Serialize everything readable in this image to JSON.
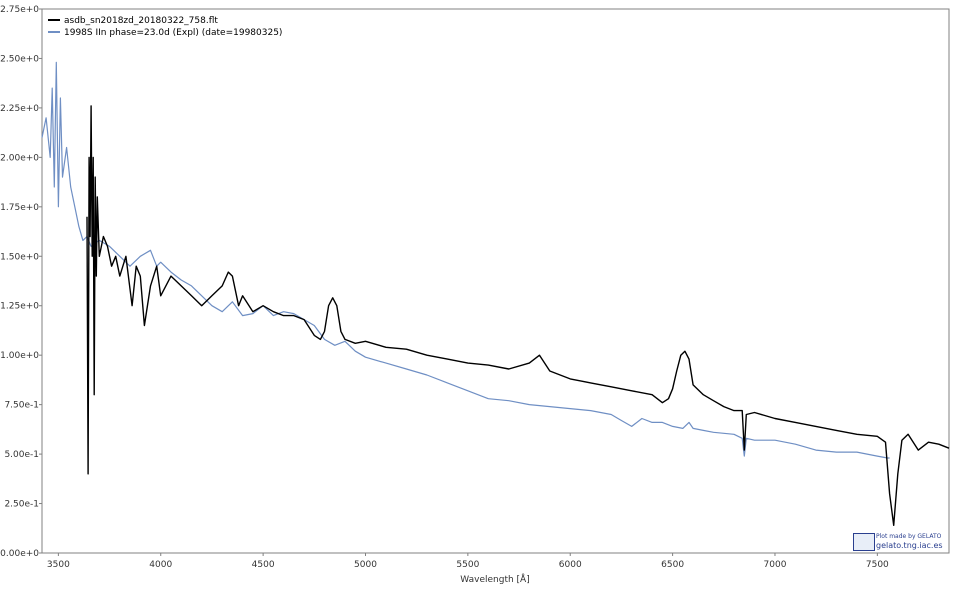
{
  "chart_data": {
    "type": "line",
    "title": "",
    "xlabel": "Wavelength [Å]",
    "ylabel": "",
    "xlim": [
      3420,
      7850
    ],
    "ylim": [
      0,
      2.75
    ],
    "xticks": [
      3500,
      4000,
      4500,
      5000,
      5500,
      6000,
      6500,
      7000,
      7500
    ],
    "yticks": [
      0,
      0.25,
      0.5,
      0.75,
      1.0,
      1.25,
      1.5,
      1.75,
      2.0,
      2.25,
      2.5,
      2.75
    ],
    "ytick_labels": [
      "0.00e+0",
      "2.50e-1",
      "5.00e-1",
      "7.50e-1",
      "1.00e+0",
      "1.25e+0",
      "1.50e+0",
      "1.75e+0",
      "2.00e+0",
      "2.25e+0",
      "2.50e+0",
      "2.75e+0"
    ],
    "grid": false,
    "legend_position": "top-left",
    "series": [
      {
        "name": "asdb_sn2018zd_20180322_758.flt",
        "color": "#000000",
        "x": [
          3640,
          3645,
          3650,
          3655,
          3660,
          3665,
          3670,
          3675,
          3680,
          3685,
          3690,
          3700,
          3720,
          3740,
          3760,
          3780,
          3800,
          3830,
          3860,
          3880,
          3900,
          3920,
          3950,
          3980,
          4000,
          4050,
          4100,
          4150,
          4200,
          4250,
          4300,
          4330,
          4350,
          4380,
          4400,
          4450,
          4500,
          4550,
          4600,
          4650,
          4700,
          4750,
          4780,
          4800,
          4820,
          4840,
          4860,
          4880,
          4900,
          4950,
          5000,
          5100,
          5200,
          5300,
          5400,
          5500,
          5600,
          5700,
          5800,
          5850,
          5900,
          6000,
          6100,
          6200,
          6300,
          6400,
          6450,
          6480,
          6500,
          6520,
          6540,
          6560,
          6580,
          6600,
          6650,
          6700,
          6750,
          6800,
          6840,
          6850,
          6860,
          6900,
          7000,
          7100,
          7200,
          7300,
          7400,
          7500,
          7540,
          7560,
          7580,
          7600,
          7620,
          7650,
          7700,
          7750,
          7800,
          7850
        ],
        "y": [
          1.7,
          0.4,
          2.0,
          1.6,
          2.26,
          1.5,
          2.0,
          0.8,
          1.9,
          1.4,
          1.8,
          1.5,
          1.6,
          1.55,
          1.45,
          1.5,
          1.4,
          1.5,
          1.25,
          1.45,
          1.4,
          1.15,
          1.35,
          1.45,
          1.3,
          1.4,
          1.35,
          1.3,
          1.25,
          1.3,
          1.35,
          1.42,
          1.4,
          1.25,
          1.3,
          1.22,
          1.25,
          1.22,
          1.2,
          1.2,
          1.18,
          1.1,
          1.08,
          1.12,
          1.25,
          1.29,
          1.25,
          1.12,
          1.08,
          1.06,
          1.07,
          1.04,
          1.03,
          1.0,
          0.98,
          0.96,
          0.95,
          0.93,
          0.96,
          1.0,
          0.92,
          0.88,
          0.86,
          0.84,
          0.82,
          0.8,
          0.76,
          0.78,
          0.83,
          0.92,
          1.0,
          1.02,
          0.98,
          0.85,
          0.8,
          0.77,
          0.74,
          0.72,
          0.72,
          0.52,
          0.7,
          0.71,
          0.68,
          0.66,
          0.64,
          0.62,
          0.6,
          0.59,
          0.56,
          0.3,
          0.14,
          0.4,
          0.57,
          0.6,
          0.52,
          0.56,
          0.55,
          0.53
        ]
      },
      {
        "name": "1998S  IIn  phase=23.0d (Expl)  (date=19980325)",
        "color": "#6f8fc4",
        "x": [
          3420,
          3440,
          3460,
          3470,
          3480,
          3490,
          3500,
          3510,
          3520,
          3540,
          3560,
          3580,
          3600,
          3620,
          3640,
          3660,
          3700,
          3750,
          3800,
          3850,
          3900,
          3950,
          3980,
          4000,
          4050,
          4100,
          4150,
          4200,
          4250,
          4300,
          4350,
          4400,
          4450,
          4500,
          4550,
          4600,
          4650,
          4700,
          4750,
          4800,
          4850,
          4900,
          4950,
          5000,
          5100,
          5200,
          5300,
          5400,
          5500,
          5600,
          5700,
          5800,
          5900,
          6000,
          6100,
          6200,
          6250,
          6300,
          6350,
          6400,
          6450,
          6500,
          6550,
          6580,
          6600,
          6650,
          6700,
          6800,
          6840,
          6850,
          6860,
          6900,
          7000,
          7100,
          7200,
          7300,
          7400,
          7500,
          7550,
          7560
        ],
        "y": [
          2.1,
          2.2,
          2.0,
          2.35,
          1.85,
          2.48,
          1.75,
          2.3,
          1.9,
          2.05,
          1.85,
          1.75,
          1.65,
          1.58,
          1.6,
          1.55,
          1.58,
          1.55,
          1.5,
          1.45,
          1.5,
          1.53,
          1.45,
          1.47,
          1.42,
          1.38,
          1.35,
          1.3,
          1.25,
          1.22,
          1.27,
          1.2,
          1.21,
          1.25,
          1.2,
          1.22,
          1.21,
          1.18,
          1.15,
          1.08,
          1.05,
          1.07,
          1.02,
          0.99,
          0.96,
          0.93,
          0.9,
          0.86,
          0.82,
          0.78,
          0.77,
          0.75,
          0.74,
          0.73,
          0.72,
          0.7,
          0.67,
          0.64,
          0.68,
          0.66,
          0.66,
          0.64,
          0.63,
          0.66,
          0.63,
          0.62,
          0.61,
          0.6,
          0.58,
          0.49,
          0.58,
          0.57,
          0.57,
          0.55,
          0.52,
          0.51,
          0.51,
          0.49,
          0.48,
          0.48
        ]
      }
    ]
  },
  "credit": {
    "line1": "Plot made by GELATO",
    "line2": "gelato.tng.iac.es",
    "logo_text": "ISSIA"
  }
}
